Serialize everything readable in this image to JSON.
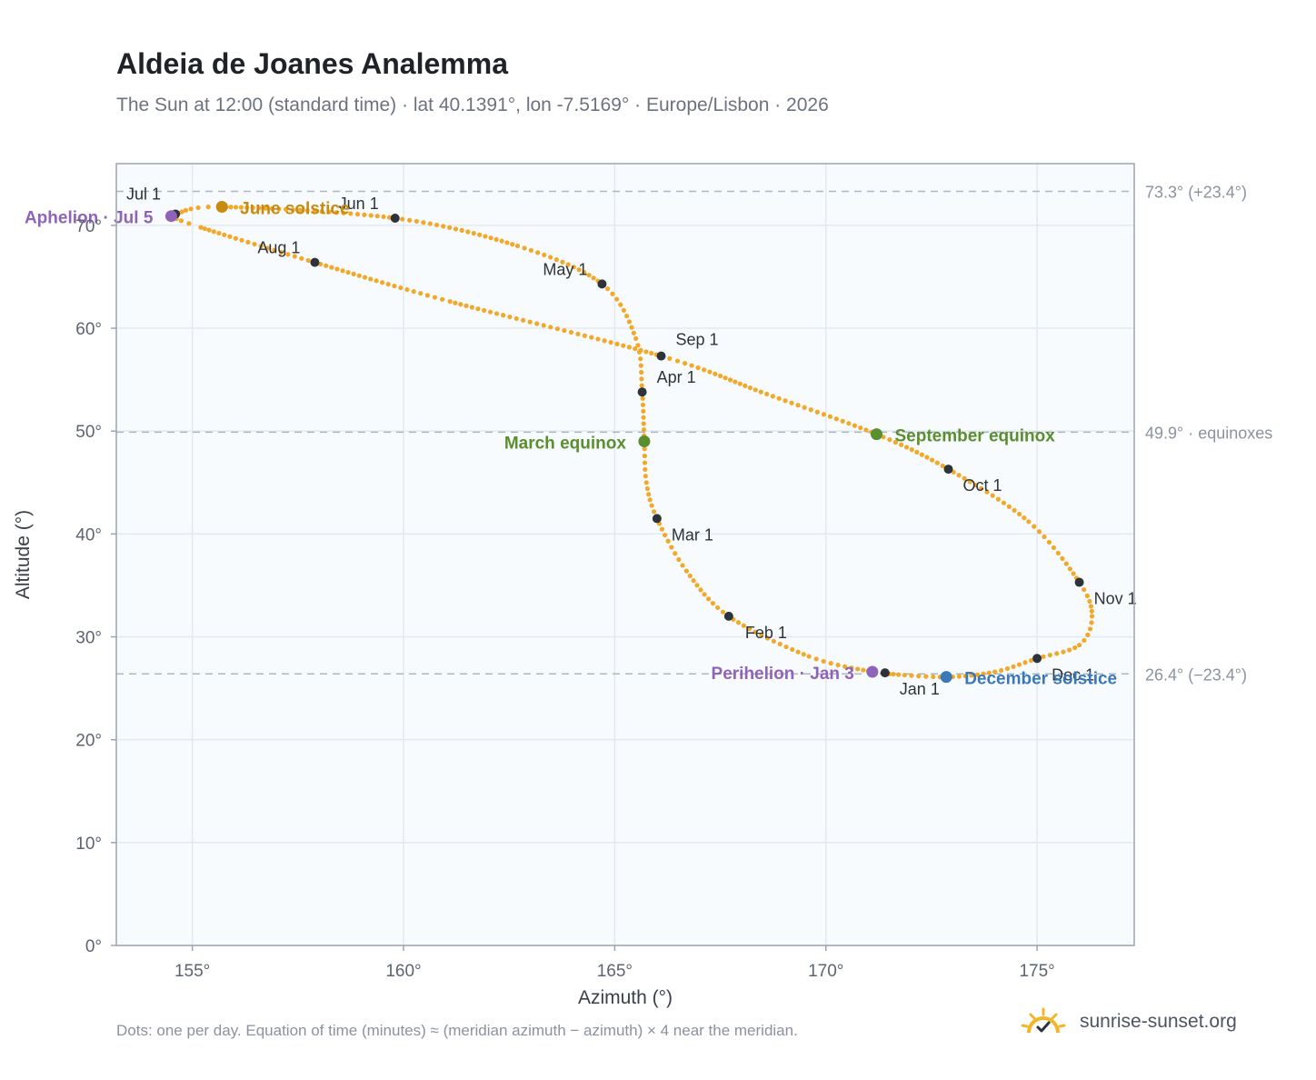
{
  "header": {
    "title": "Aldeia de Joanes Analemma",
    "subtitle": "The Sun at 12:00 (standard time) · lat 40.1391°, lon -7.5169° · Europe/Lisbon · 2026"
  },
  "footer": {
    "note": "Dots: one per day. Equation of time (minutes) ≈ (meridian azimuth − azimuth) × 4 near the meridian.",
    "brand": "sunrise-sunset.org"
  },
  "colors": {
    "curve": "#f2a829",
    "month_marker": "#2d333b",
    "solstice_june": "#c98a10",
    "solstice_december": "#3a78b8",
    "equinox": "#5a8f2e",
    "apsis": "#8f63b8",
    "plot_bg": "#f8fbfd",
    "grid": "#e4e9ef",
    "reference_line": "#a8b8c8"
  },
  "chart_data": {
    "type": "scatter",
    "title": "Aldeia de Joanes Analemma",
    "xlabel": "Azimuth (°)",
    "ylabel": "Altitude (°)",
    "xlim": [
      153.2,
      177.3
    ],
    "ylim": [
      0,
      76
    ],
    "x_ticks": [
      155,
      160,
      165,
      170,
      175
    ],
    "x_tick_labels": [
      "155°",
      "160°",
      "165°",
      "170°",
      "175°"
    ],
    "y_ticks": [
      0,
      10,
      20,
      30,
      40,
      50,
      60,
      70
    ],
    "y_tick_labels": [
      "0°",
      "10°",
      "20°",
      "30°",
      "40°",
      "50°",
      "60°",
      "70°"
    ],
    "grid": true,
    "reference_lines": [
      {
        "y": 73.3,
        "label": "73.3° (+23.4°)"
      },
      {
        "y": 49.9,
        "label": "49.9° · equinoxes"
      },
      {
        "y": 26.4,
        "label": "26.4° (−23.4°)"
      }
    ],
    "daily_path": [
      {
        "date": "Jan 1",
        "azimuth": 171.4,
        "altitude": 26.5
      },
      {
        "date": "Jan 3",
        "azimuth": 171.1,
        "altitude": 26.6
      },
      {
        "date": "Jan 15",
        "azimuth": 169.6,
        "altitude": 28.1
      },
      {
        "date": "Feb 1",
        "azimuth": 167.7,
        "altitude": 32.0
      },
      {
        "date": "Feb 15",
        "azimuth": 166.7,
        "altitude": 36.4
      },
      {
        "date": "Mar 1",
        "azimuth": 166.0,
        "altitude": 41.5
      },
      {
        "date": "Mar 10",
        "azimuth": 165.75,
        "altitude": 45.0
      },
      {
        "date": "Mar 20",
        "azimuth": 165.7,
        "altitude": 49.0
      },
      {
        "date": "Apr 1",
        "azimuth": 165.65,
        "altitude": 53.8
      },
      {
        "date": "Apr 15",
        "azimuth": 165.5,
        "altitude": 59.0
      },
      {
        "date": "May 1",
        "azimuth": 164.7,
        "altitude": 64.3
      },
      {
        "date": "May 15",
        "azimuth": 162.7,
        "altitude": 68.0
      },
      {
        "date": "Jun 1",
        "azimuth": 159.8,
        "altitude": 70.7
      },
      {
        "date": "Jun 21",
        "azimuth": 155.7,
        "altitude": 71.8
      },
      {
        "date": "Jul 1",
        "azimuth": 154.6,
        "altitude": 71.1
      },
      {
        "date": "Jul 5",
        "azimuth": 154.5,
        "altitude": 70.9
      },
      {
        "date": "Jul 15",
        "azimuth": 155.2,
        "altitude": 69.8
      },
      {
        "date": "Aug 1",
        "azimuth": 157.9,
        "altitude": 66.4
      },
      {
        "date": "Aug 15",
        "azimuth": 161.1,
        "altitude": 62.6
      },
      {
        "date": "Sep 1",
        "azimuth": 166.1,
        "altitude": 57.3
      },
      {
        "date": "Sep 10",
        "azimuth": 168.6,
        "altitude": 53.6
      },
      {
        "date": "Sep 23",
        "azimuth": 171.2,
        "altitude": 49.7
      },
      {
        "date": "Oct 1",
        "azimuth": 172.9,
        "altitude": 46.3
      },
      {
        "date": "Oct 15",
        "azimuth": 174.8,
        "altitude": 41.2
      },
      {
        "date": "Nov 1",
        "azimuth": 176.0,
        "altitude": 35.3
      },
      {
        "date": "Nov 10",
        "azimuth": 176.3,
        "altitude": 32.0
      },
      {
        "date": "Nov 20",
        "azimuth": 176.0,
        "altitude": 29.2
      },
      {
        "date": "Dec 1",
        "azimuth": 175.0,
        "altitude": 27.9
      },
      {
        "date": "Dec 10",
        "azimuth": 174.0,
        "altitude": 26.6
      },
      {
        "date": "Dec 21",
        "azimuth": 172.85,
        "altitude": 26.1
      },
      {
        "date": "Dec 31",
        "azimuth": 171.5,
        "altitude": 26.4
      }
    ],
    "month_markers": [
      {
        "label": "Jan 1",
        "azimuth": 171.4,
        "altitude": 26.5
      },
      {
        "label": "Feb 1",
        "azimuth": 167.7,
        "altitude": 32.0
      },
      {
        "label": "Mar 1",
        "azimuth": 166.0,
        "altitude": 41.5
      },
      {
        "label": "Apr 1",
        "azimuth": 165.65,
        "altitude": 53.8
      },
      {
        "label": "May 1",
        "azimuth": 164.7,
        "altitude": 64.3
      },
      {
        "label": "Jun 1",
        "azimuth": 159.8,
        "altitude": 70.7
      },
      {
        "label": "Jul 1",
        "azimuth": 154.6,
        "altitude": 71.1
      },
      {
        "label": "Aug 1",
        "azimuth": 157.9,
        "altitude": 66.4
      },
      {
        "label": "Sep 1",
        "azimuth": 166.1,
        "altitude": 57.3
      },
      {
        "label": "Oct 1",
        "azimuth": 172.9,
        "altitude": 46.3
      },
      {
        "label": "Nov 1",
        "azimuth": 176.0,
        "altitude": 35.3
      },
      {
        "label": "Dec 1",
        "azimuth": 175.0,
        "altitude": 27.9
      }
    ],
    "events": [
      {
        "label": "June solstice",
        "azimuth": 155.7,
        "altitude": 71.8,
        "kind": "solstice_june"
      },
      {
        "label": "December solstice",
        "azimuth": 172.85,
        "altitude": 26.1,
        "kind": "solstice_december"
      },
      {
        "label": "March equinox",
        "azimuth": 165.7,
        "altitude": 49.0,
        "kind": "equinox"
      },
      {
        "label": "September equinox",
        "azimuth": 171.2,
        "altitude": 49.7,
        "kind": "equinox"
      },
      {
        "label": "Aphelion · Jul 5",
        "azimuth": 154.5,
        "altitude": 70.9,
        "kind": "apsis"
      },
      {
        "label": "Perihelion · Jan 3",
        "azimuth": 171.1,
        "altitude": 26.6,
        "kind": "apsis"
      }
    ]
  }
}
